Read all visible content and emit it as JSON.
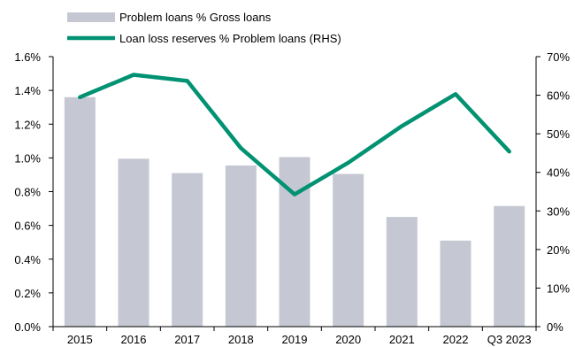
{
  "chart_data": {
    "type": "bar",
    "categories": [
      "2015",
      "2016",
      "2017",
      "2018",
      "2019",
      "2020",
      "2021",
      "2022",
      "Q3 2023"
    ],
    "series": [
      {
        "name": "Problem loans % Gross loans",
        "type": "bar",
        "axis": "left",
        "color": "#c5c8d3",
        "values": [
          1.36,
          0.995,
          0.91,
          0.955,
          1.005,
          0.905,
          0.65,
          0.51,
          0.715
        ]
      },
      {
        "name": "Loan loss reserves % Problem loans (RHS)",
        "type": "line",
        "axis": "right",
        "color": "#009272",
        "values": [
          59.5,
          65.3,
          63.7,
          46.3,
          34.3,
          42.5,
          52.0,
          60.3,
          45.4
        ]
      }
    ],
    "y_left": {
      "ylim": [
        0,
        1.6
      ],
      "ticks": [
        "0.0%",
        "0.2%",
        "0.4%",
        "0.6%",
        "0.8%",
        "1.0%",
        "1.2%",
        "1.4%",
        "1.6%"
      ]
    },
    "y_right": {
      "ylim": [
        0,
        70
      ],
      "ticks": [
        "0%",
        "10%",
        "20%",
        "30%",
        "40%",
        "50%",
        "60%",
        "70%"
      ]
    },
    "grid": false,
    "legend_position": "top-left"
  }
}
